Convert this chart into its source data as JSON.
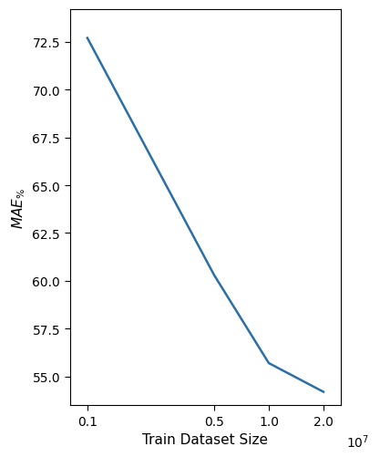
{
  "x": [
    1000000,
    5000000,
    10000000,
    20000000
  ],
  "y": [
    72.7,
    60.3,
    55.7,
    54.2
  ],
  "line_color": "#2b6fa8",
  "line_width": 1.8,
  "xlabel": "Train Dataset Size",
  "ylabel": "$MAE_{\\%}$",
  "xlim": [
    800000,
    25000000
  ],
  "ylim": [
    53.5,
    74.2
  ],
  "yticks": [
    55.0,
    57.5,
    60.0,
    62.5,
    65.0,
    67.5,
    70.0,
    72.5
  ],
  "xticks": [
    1000000,
    5000000,
    10000000,
    20000000
  ],
  "xtick_labels": [
    "0.1",
    "0.5",
    "1.0",
    "2.0"
  ],
  "offset_label": "$10^7$",
  "background_color": "#ffffff"
}
